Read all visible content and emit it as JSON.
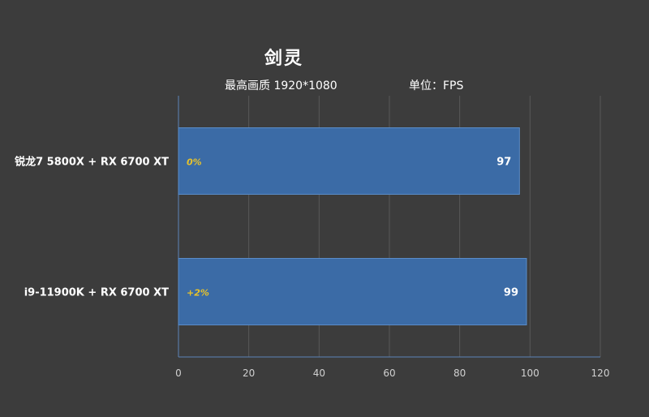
{
  "chart_data": {
    "type": "bar",
    "orientation": "horizontal",
    "title": "剑灵",
    "subtitle_left": "最高画质 1920*1080",
    "subtitle_right": "单位：FPS",
    "categories": [
      "锐龙7 5800X + RX 6700 XT",
      "i9-11900K + RX 6700 XT"
    ],
    "values": [
      97,
      99
    ],
    "annotations": [
      "0%",
      "+2%"
    ],
    "xlim": [
      0,
      120
    ],
    "xticks": [
      "0",
      "20",
      "40",
      "60",
      "80",
      "100",
      "120"
    ],
    "grid": true,
    "legend": "none"
  },
  "colors": {
    "background": "#3c3c3c",
    "bar_fill": "#3b6ba6",
    "bar_edge": "#5a8cc8",
    "annotation": "#e8c32a",
    "grid": "#595959",
    "axis": "#5b84b8",
    "text": "#ffffff",
    "tick_text": "#d0d0d0"
  }
}
